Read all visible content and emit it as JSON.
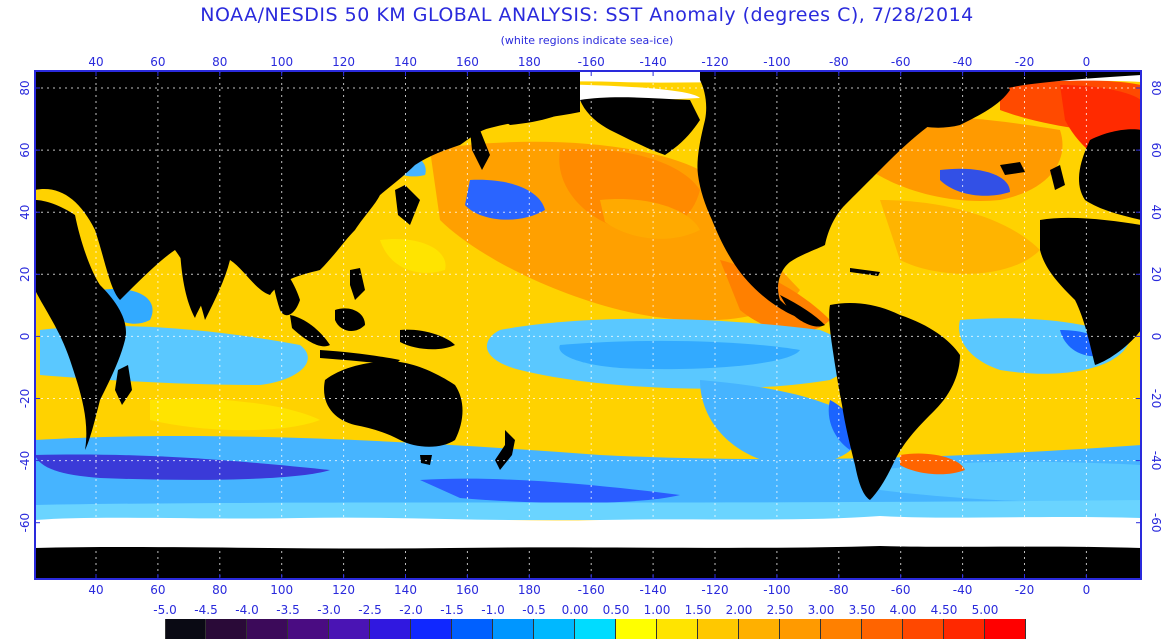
{
  "header": {
    "title": "NOAA/NESDIS 50 KM GLOBAL ANALYSIS: SST Anomaly (degrees C), 7/28/2014",
    "subtitle": "(white regions indicate sea-ice)"
  },
  "map": {
    "lon_labels_top": [
      "40",
      "60",
      "80",
      "100",
      "120",
      "140",
      "160",
      "180",
      "-160",
      "-140",
      "-120",
      "-100",
      "-80",
      "-60",
      "-40",
      "-20",
      "0"
    ],
    "lon_labels_bottom": [
      "40",
      "60",
      "80",
      "100",
      "120",
      "140",
      "160",
      "180",
      "-160",
      "-140",
      "-120",
      "-100",
      "-80",
      "-60",
      "-40",
      "-20",
      "0"
    ],
    "lat_labels_left": [
      "80",
      "60",
      "40",
      "20",
      "0",
      "-20",
      "-40",
      "-60"
    ],
    "lat_labels_right": [
      "80",
      "60",
      "40",
      "20",
      "0",
      "-20",
      "-40",
      "-60"
    ],
    "colors": {
      "land": "#000000",
      "ice": "#ffffff",
      "frame": "#2a2adc",
      "grid": "#ffffff"
    }
  },
  "color_scale": {
    "labels": [
      "-5.0",
      "-4.5",
      "-4.0",
      "-3.5",
      "-3.0",
      "-2.5",
      "-2.0",
      "-1.5",
      "-1.0",
      "-0.5",
      "0.00",
      "0.50",
      "1.00",
      "1.50",
      "2.00",
      "2.50",
      "3.00",
      "3.50",
      "4.00",
      "4.50",
      "5.00"
    ],
    "colors": [
      "#0a0a14",
      "#2a0a38",
      "#3c0a5a",
      "#4a0c82",
      "#4a14b4",
      "#3018e0",
      "#1028ff",
      "#0060ff",
      "#0096ff",
      "#00b8ff",
      "#00dcff",
      "#ffff00",
      "#ffe400",
      "#ffc800",
      "#ffb000",
      "#ff9a00",
      "#ff8000",
      "#ff6400",
      "#ff4800",
      "#ff2800",
      "#ff0000"
    ]
  }
}
